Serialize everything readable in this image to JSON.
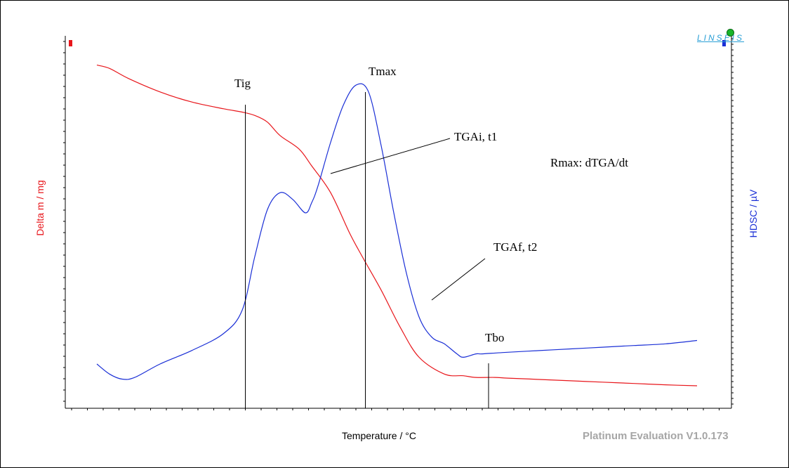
{
  "chart_data": {
    "type": "line",
    "title": "",
    "xlabel": "Temperature / °C",
    "ylabel_left": "Delta m / mg",
    "ylabel_right": "HDSC / µV",
    "ylim_left": [
      0,
      1
    ],
    "ylim_right": [
      0,
      1
    ],
    "xlim": [
      0,
      1
    ],
    "grid": false,
    "series": [
      {
        "name": "",
        "axis": "left",
        "color": "#e8161b",
        "x": [
          0.05,
          0.07,
          0.1,
          0.15,
          0.2,
          0.25,
          0.28,
          0.3,
          0.32,
          0.34,
          0.37,
          0.39,
          0.42,
          0.45,
          0.47,
          0.5,
          0.53,
          0.56,
          0.6,
          0.63,
          0.65,
          0.68,
          0.7,
          0.75,
          0.8,
          0.85,
          0.9,
          0.95,
          1.0
        ],
        "y": [
          0.98,
          0.97,
          0.94,
          0.9,
          0.87,
          0.85,
          0.84,
          0.83,
          0.81,
          0.77,
          0.73,
          0.68,
          0.6,
          0.48,
          0.41,
          0.31,
          0.2,
          0.11,
          0.06,
          0.055,
          0.05,
          0.05,
          0.048,
          0.044,
          0.04,
          0.036,
          0.032,
          0.028,
          0.025
        ]
      },
      {
        "name": "",
        "axis": "right",
        "color": "#1a2fd6",
        "x": [
          0.05,
          0.07,
          0.09,
          0.11,
          0.15,
          0.2,
          0.25,
          0.28,
          0.3,
          0.32,
          0.34,
          0.36,
          0.38,
          0.39,
          0.4,
          0.42,
          0.44,
          0.46,
          0.48,
          0.5,
          0.52,
          0.54,
          0.56,
          0.58,
          0.6,
          0.62,
          0.63,
          0.65,
          0.66,
          0.7,
          0.75,
          0.8,
          0.85,
          0.9,
          0.95,
          1.0
        ],
        "y": [
          0.09,
          0.06,
          0.045,
          0.05,
          0.09,
          0.13,
          0.18,
          0.25,
          0.41,
          0.55,
          0.6,
          0.58,
          0.54,
          0.57,
          0.62,
          0.75,
          0.86,
          0.92,
          0.9,
          0.74,
          0.54,
          0.36,
          0.23,
          0.17,
          0.15,
          0.12,
          0.11,
          0.12,
          0.12,
          0.125,
          0.13,
          0.135,
          0.14,
          0.145,
          0.15,
          0.16
        ]
      }
    ],
    "annotations": [
      {
        "label": "Tig",
        "x": 0.285
      },
      {
        "label": "Tmax",
        "x": 0.475
      },
      {
        "label": "TGAi, t1",
        "x": 0.42
      },
      {
        "label": "Rmax: dTGA/dt"
      },
      {
        "label": "TGAf, t2",
        "x": 0.58
      },
      {
        "label": "Tbo",
        "x": 0.67
      }
    ]
  },
  "colors": {
    "left_axis": "#e8161b",
    "right_axis": "#1a2fd6",
    "brand": "#2a9fd6",
    "footer": "#a6a6a6"
  },
  "logo": {
    "text": "LINSEIS"
  },
  "footer": {
    "version": "Platinum Evaluation V1.0.173"
  }
}
